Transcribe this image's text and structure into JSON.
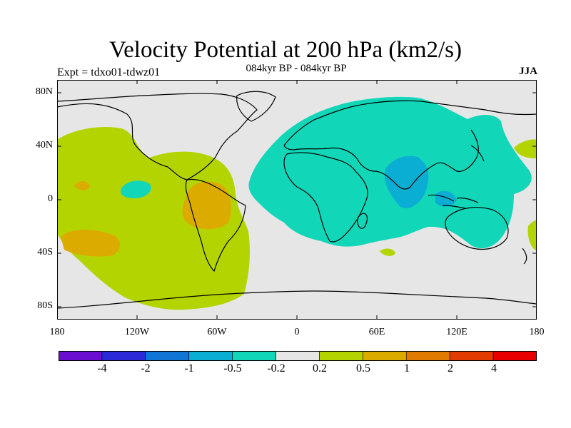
{
  "header": {
    "title": "Velocity Potential at 200 hPa (km2/s)",
    "subtitle": "084kyr BP - 084kyr BP",
    "experiment": "Expt = tdxo01-tdwz01",
    "season": "JJA"
  },
  "axes": {
    "y_ticks": [
      "80N",
      "40N",
      "0",
      "40S",
      "80S"
    ],
    "x_ticks": [
      "180",
      "120W",
      "60W",
      "0",
      "60E",
      "120E",
      "180"
    ]
  },
  "legend": {
    "labels": [
      "-4",
      "-2",
      "-1",
      "-0.5",
      "-0.2",
      "0.2",
      "0.5",
      "1",
      "2",
      "4"
    ],
    "colors": [
      "#6a0fd2",
      "#2a2ad8",
      "#0f76d6",
      "#0aaed2",
      "#12d6b8",
      "#e6e6e6",
      "#b4d400",
      "#dcab00",
      "#e07a00",
      "#e23c00",
      "#e80000"
    ]
  },
  "palette": {
    "neutral": "#e6e6e6",
    "pos_weak": "#b4d400",
    "pos_mod": "#dcab00",
    "neg_weak": "#12d6b8",
    "neg_mod": "#0aaed2",
    "coast": "#000000"
  }
}
